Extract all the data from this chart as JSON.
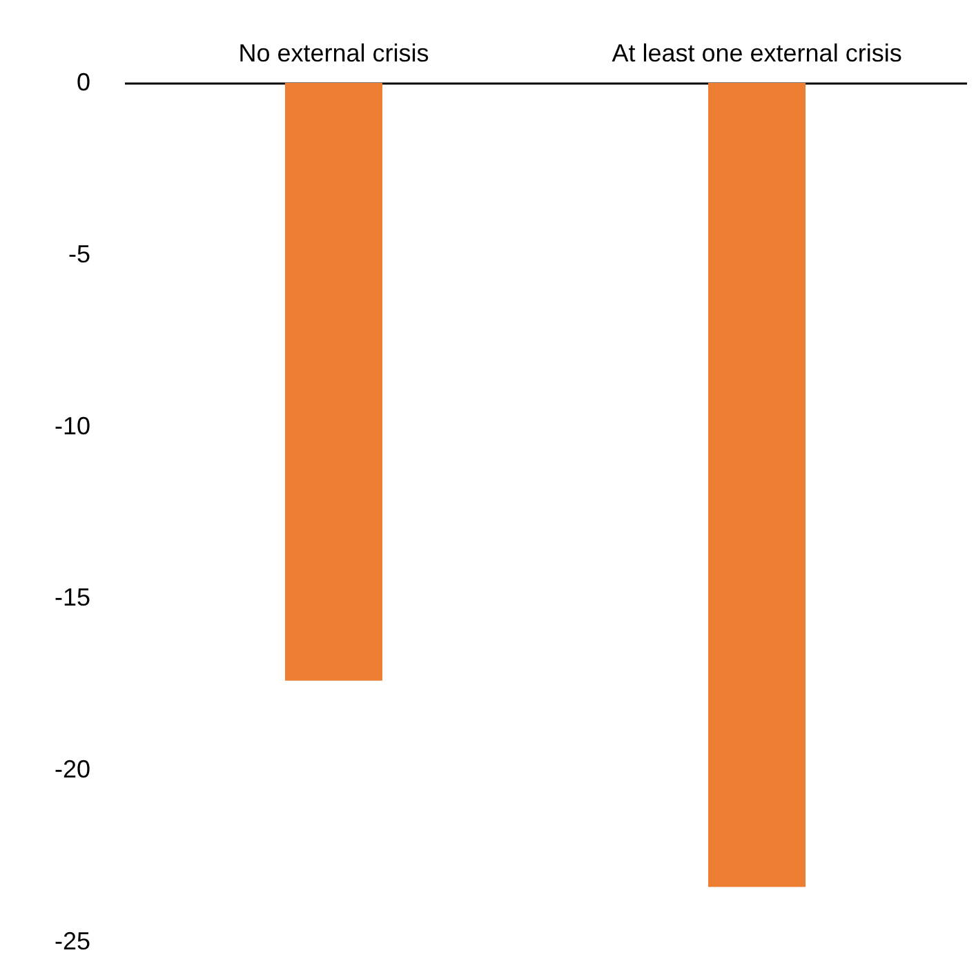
{
  "chart_data": {
    "type": "bar",
    "categories": [
      "No external crisis",
      "At least one external crisis"
    ],
    "values": [
      -17.4,
      -23.4
    ],
    "color": "#ed7d31",
    "ylim": [
      -25,
      0
    ],
    "yticks": [
      0,
      -5,
      -10,
      -15,
      -20,
      -25
    ],
    "grid": false
  }
}
